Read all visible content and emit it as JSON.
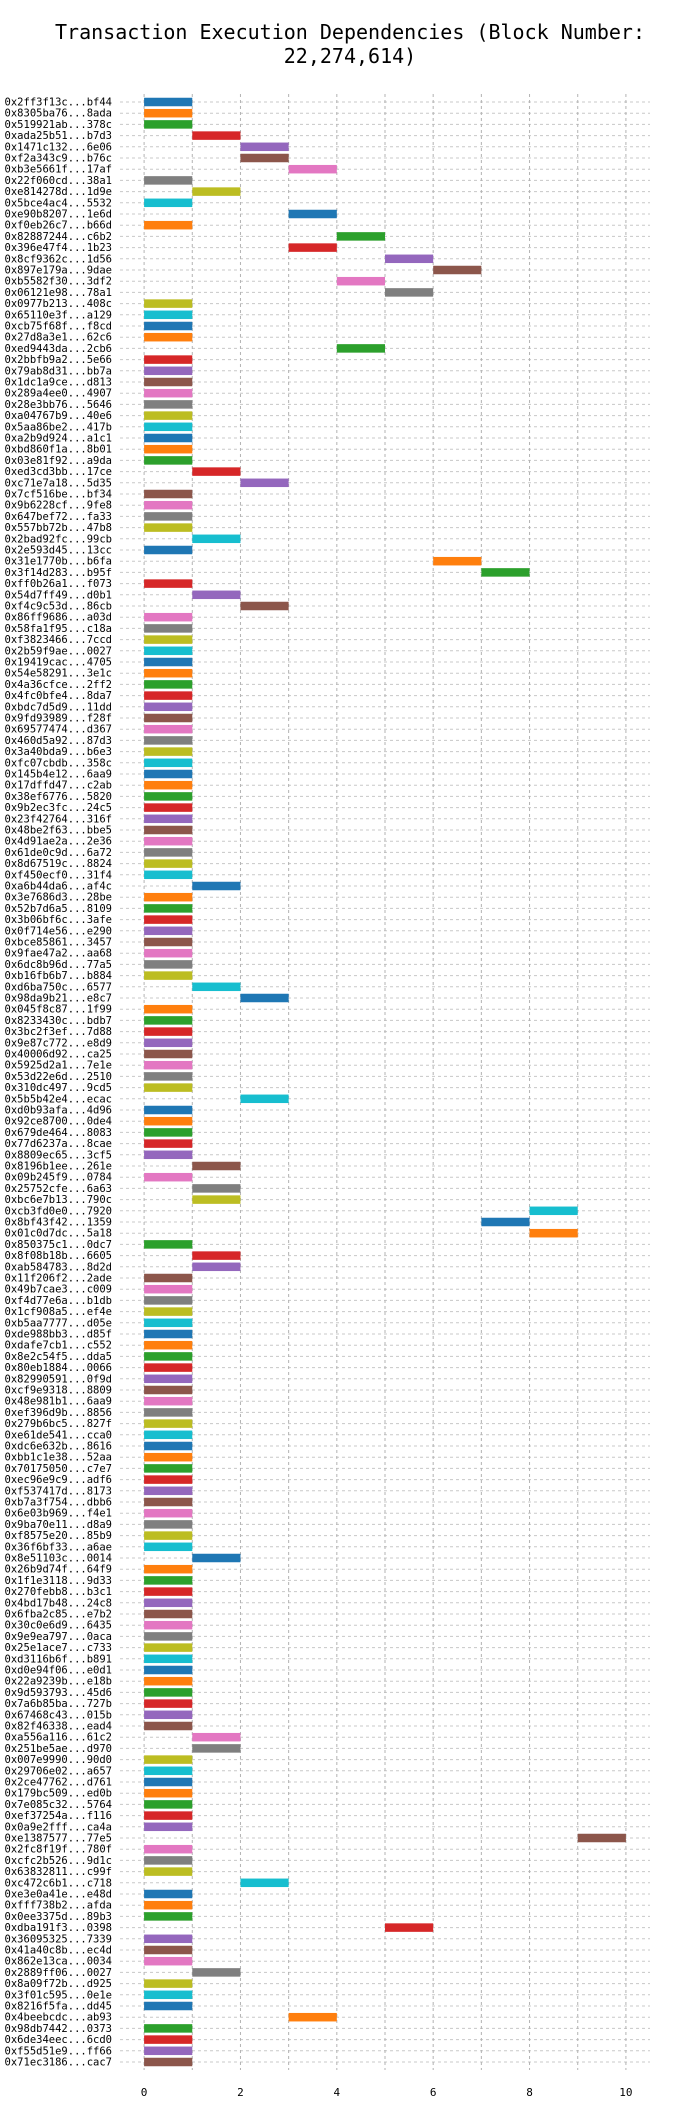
{
  "chart_data": {
    "type": "bar",
    "orientation": "horizontal",
    "title": "Transaction Execution Dependencies (Block Number: 22,274,614)",
    "xlabel": "",
    "ylabel": "",
    "xlim": [
      -0.5,
      10.5
    ],
    "xticks": [
      0,
      2,
      4,
      6,
      8,
      10
    ],
    "grid": {
      "x": true,
      "y": true,
      "x_step": 1
    },
    "palette": [
      "#1f77b4",
      "#ff7f0e",
      "#2ca02c",
      "#d62728",
      "#9467bd",
      "#8c564b",
      "#e377c2",
      "#7f7f7f",
      "#bcbd22",
      "#17becf"
    ],
    "transactions": [
      {
        "label": "0x2ff3f13c...bf44",
        "start": 0,
        "end": 1
      },
      {
        "label": "0x8305ba76...8ada",
        "start": 0,
        "end": 1
      },
      {
        "label": "0x519921ab...378c",
        "start": 0,
        "end": 1
      },
      {
        "label": "0xada25b51...b7d3",
        "start": 1,
        "end": 2
      },
      {
        "label": "0x1471c132...6e06",
        "start": 2,
        "end": 3
      },
      {
        "label": "0xf2a343c9...b76c",
        "start": 2,
        "end": 3
      },
      {
        "label": "0xb3e5661f...17af",
        "start": 3,
        "end": 4
      },
      {
        "label": "0x22f060cd...38a1",
        "start": 0,
        "end": 1
      },
      {
        "label": "0xe814278d...1d9e",
        "start": 1,
        "end": 2
      },
      {
        "label": "0x5bce4ac4...5532",
        "start": 0,
        "end": 1
      },
      {
        "label": "0xe90b8207...1e6d",
        "start": 3,
        "end": 4
      },
      {
        "label": "0xf0eb26c7...b66d",
        "start": 0,
        "end": 1
      },
      {
        "label": "0x82887244...c6b2",
        "start": 4,
        "end": 5
      },
      {
        "label": "0x396e47f4...1b23",
        "start": 3,
        "end": 4
      },
      {
        "label": "0x8cf9362c...1d56",
        "start": 5,
        "end": 6
      },
      {
        "label": "0x897e179a...9dae",
        "start": 6,
        "end": 7
      },
      {
        "label": "0xb5582f30...3df2",
        "start": 4,
        "end": 5
      },
      {
        "label": "0x06121e98...78a1",
        "start": 5,
        "end": 6
      },
      {
        "label": "0x0977b213...408c",
        "start": 0,
        "end": 1
      },
      {
        "label": "0x65110e3f...a129",
        "start": 0,
        "end": 1
      },
      {
        "label": "0xcb75f68f...f8cd",
        "start": 0,
        "end": 1
      },
      {
        "label": "0x27d8a3e1...62c6",
        "start": 0,
        "end": 1
      },
      {
        "label": "0xed9443da...2cb6",
        "start": 4,
        "end": 5
      },
      {
        "label": "0x2bbfb9a2...5e66",
        "start": 0,
        "end": 1
      },
      {
        "label": "0x79ab8d31...bb7a",
        "start": 0,
        "end": 1
      },
      {
        "label": "0x1dc1a9ce...d813",
        "start": 0,
        "end": 1
      },
      {
        "label": "0x289a4ee0...4907",
        "start": 0,
        "end": 1
      },
      {
        "label": "0x28e3bb76...5646",
        "start": 0,
        "end": 1
      },
      {
        "label": "0xa04767b9...40e6",
        "start": 0,
        "end": 1
      },
      {
        "label": "0x5aa86be2...417b",
        "start": 0,
        "end": 1
      },
      {
        "label": "0xa2b9d924...a1c1",
        "start": 0,
        "end": 1
      },
      {
        "label": "0xbd860f1a...8b01",
        "start": 0,
        "end": 1
      },
      {
        "label": "0x03e81f92...a9da",
        "start": 0,
        "end": 1
      },
      {
        "label": "0xed3cd3bb...17ce",
        "start": 1,
        "end": 2
      },
      {
        "label": "0xc71e7a18...5d35",
        "start": 2,
        "end": 3
      },
      {
        "label": "0x7cf516be...bf34",
        "start": 0,
        "end": 1
      },
      {
        "label": "0x9b6228cf...9fe8",
        "start": 0,
        "end": 1
      },
      {
        "label": "0x647bef72...fa33",
        "start": 0,
        "end": 1
      },
      {
        "label": "0x557bb72b...47b8",
        "start": 0,
        "end": 1
      },
      {
        "label": "0x2bad92fc...99cb",
        "start": 1,
        "end": 2
      },
      {
        "label": "0x2e593d45...13cc",
        "start": 0,
        "end": 1
      },
      {
        "label": "0x31e1770b...b6fa",
        "start": 6,
        "end": 7
      },
      {
        "label": "0x3f14d283...b95f",
        "start": 7,
        "end": 8
      },
      {
        "label": "0xff0b26a1...f073",
        "start": 0,
        "end": 1
      },
      {
        "label": "0x54d7ff49...d0b1",
        "start": 1,
        "end": 2
      },
      {
        "label": "0xf4c9c53d...86cb",
        "start": 2,
        "end": 3
      },
      {
        "label": "0x86ff9686...a03d",
        "start": 0,
        "end": 1
      },
      {
        "label": "0x58fa1f95...c18a",
        "start": 0,
        "end": 1
      },
      {
        "label": "0xf3823466...7ccd",
        "start": 0,
        "end": 1
      },
      {
        "label": "0x2b59f9ae...0027",
        "start": 0,
        "end": 1
      },
      {
        "label": "0x19419cac...4705",
        "start": 0,
        "end": 1
      },
      {
        "label": "0x54e58291...3e1c",
        "start": 0,
        "end": 1
      },
      {
        "label": "0x4a36cfce...2ff2",
        "start": 0,
        "end": 1
      },
      {
        "label": "0x4fc0bfe4...8da7",
        "start": 0,
        "end": 1
      },
      {
        "label": "0xbdc7d5d9...11dd",
        "start": 0,
        "end": 1
      },
      {
        "label": "0x9fd93989...f28f",
        "start": 0,
        "end": 1
      },
      {
        "label": "0x69577474...d367",
        "start": 0,
        "end": 1
      },
      {
        "label": "0x460d5a92...87d3",
        "start": 0,
        "end": 1
      },
      {
        "label": "0x3a40bda9...b6e3",
        "start": 0,
        "end": 1
      },
      {
        "label": "0xfc07cbdb...358c",
        "start": 0,
        "end": 1
      },
      {
        "label": "0x145b4e12...6aa9",
        "start": 0,
        "end": 1
      },
      {
        "label": "0x17dffd47...c2ab",
        "start": 0,
        "end": 1
      },
      {
        "label": "0x38ef6776...5820",
        "start": 0,
        "end": 1
      },
      {
        "label": "0x9b2ec3fc...24c5",
        "start": 0,
        "end": 1
      },
      {
        "label": "0x23f42764...316f",
        "start": 0,
        "end": 1
      },
      {
        "label": "0x48be2f63...bbe5",
        "start": 0,
        "end": 1
      },
      {
        "label": "0x4d91ae2a...2e36",
        "start": 0,
        "end": 1
      },
      {
        "label": "0x61de0c9d...6a72",
        "start": 0,
        "end": 1
      },
      {
        "label": "0x8d67519c...8824",
        "start": 0,
        "end": 1
      },
      {
        "label": "0xf450ecf0...31f4",
        "start": 0,
        "end": 1
      },
      {
        "label": "0xa6b44da6...af4c",
        "start": 1,
        "end": 2
      },
      {
        "label": "0x3e7686d3...28be",
        "start": 0,
        "end": 1
      },
      {
        "label": "0x52b7d6a5...8109",
        "start": 0,
        "end": 1
      },
      {
        "label": "0x3b06bf6c...3afe",
        "start": 0,
        "end": 1
      },
      {
        "label": "0x0f714e56...e290",
        "start": 0,
        "end": 1
      },
      {
        "label": "0xbce85861...3457",
        "start": 0,
        "end": 1
      },
      {
        "label": "0x9fae47a2...aa68",
        "start": 0,
        "end": 1
      },
      {
        "label": "0x6dc8b96d...77a5",
        "start": 0,
        "end": 1
      },
      {
        "label": "0xb16fb6b7...b884",
        "start": 0,
        "end": 1
      },
      {
        "label": "0xd6ba750c...6577",
        "start": 1,
        "end": 2
      },
      {
        "label": "0x98da9b21...e8c7",
        "start": 2,
        "end": 3
      },
      {
        "label": "0x045f8c87...1f99",
        "start": 0,
        "end": 1
      },
      {
        "label": "0x8233430c...bdb7",
        "start": 0,
        "end": 1
      },
      {
        "label": "0x3bc2f3ef...7d88",
        "start": 0,
        "end": 1
      },
      {
        "label": "0x9e87c772...e8d9",
        "start": 0,
        "end": 1
      },
      {
        "label": "0x40006d92...ca25",
        "start": 0,
        "end": 1
      },
      {
        "label": "0x5925d2a1...7e1e",
        "start": 0,
        "end": 1
      },
      {
        "label": "0x53d22e6d...2510",
        "start": 0,
        "end": 1
      },
      {
        "label": "0x310dc497...9cd5",
        "start": 0,
        "end": 1
      },
      {
        "label": "0x5b5b42e4...ecac",
        "start": 2,
        "end": 3
      },
      {
        "label": "0xd0b93afa...4d96",
        "start": 0,
        "end": 1
      },
      {
        "label": "0x92ce8700...0de4",
        "start": 0,
        "end": 1
      },
      {
        "label": "0x679de464...8083",
        "start": 0,
        "end": 1
      },
      {
        "label": "0x77d6237a...8cae",
        "start": 0,
        "end": 1
      },
      {
        "label": "0x8809ec65...3cf5",
        "start": 0,
        "end": 1
      },
      {
        "label": "0x8196b1ee...261e",
        "start": 1,
        "end": 2
      },
      {
        "label": "0x09b245f9...0784",
        "start": 0,
        "end": 1
      },
      {
        "label": "0x25752cfe...6a63",
        "start": 1,
        "end": 2
      },
      {
        "label": "0xbc6e7b13...790c",
        "start": 1,
        "end": 2
      },
      {
        "label": "0xcb3fd0e0...7920",
        "start": 8,
        "end": 9
      },
      {
        "label": "0x8bf43f42...1359",
        "start": 7,
        "end": 8
      },
      {
        "label": "0x01c0d7dc...5a18",
        "start": 8,
        "end": 9
      },
      {
        "label": "0x850375c1...0dc7",
        "start": 0,
        "end": 1
      },
      {
        "label": "0x8f08b18b...6605",
        "start": 1,
        "end": 2
      },
      {
        "label": "0xab584783...8d2d",
        "start": 1,
        "end": 2
      },
      {
        "label": "0x11f206f2...2ade",
        "start": 0,
        "end": 1
      },
      {
        "label": "0x49b7cae3...c009",
        "start": 0,
        "end": 1
      },
      {
        "label": "0xf4d77e6a...b1db",
        "start": 0,
        "end": 1
      },
      {
        "label": "0x1cf908a5...ef4e",
        "start": 0,
        "end": 1
      },
      {
        "label": "0xb5aa7777...d05e",
        "start": 0,
        "end": 1
      },
      {
        "label": "0xde988bb3...d85f",
        "start": 0,
        "end": 1
      },
      {
        "label": "0xdafe7cb1...c552",
        "start": 0,
        "end": 1
      },
      {
        "label": "0x8e2c54f5...dda5",
        "start": 0,
        "end": 1
      },
      {
        "label": "0x80eb1884...0066",
        "start": 0,
        "end": 1
      },
      {
        "label": "0x82990591...0f9d",
        "start": 0,
        "end": 1
      },
      {
        "label": "0xcf9e9318...8809",
        "start": 0,
        "end": 1
      },
      {
        "label": "0x48e981b1...6aa9",
        "start": 0,
        "end": 1
      },
      {
        "label": "0xef396d9b...8856",
        "start": 0,
        "end": 1
      },
      {
        "label": "0x279b6bc5...827f",
        "start": 0,
        "end": 1
      },
      {
        "label": "0xe61de541...cca0",
        "start": 0,
        "end": 1
      },
      {
        "label": "0xdc6e632b...8616",
        "start": 0,
        "end": 1
      },
      {
        "label": "0xbb1c1e38...52aa",
        "start": 0,
        "end": 1
      },
      {
        "label": "0x70175050...c7e7",
        "start": 0,
        "end": 1
      },
      {
        "label": "0xec96e9c9...adf6",
        "start": 0,
        "end": 1
      },
      {
        "label": "0xf537417d...8173",
        "start": 0,
        "end": 1
      },
      {
        "label": "0xb7a3f754...dbb6",
        "start": 0,
        "end": 1
      },
      {
        "label": "0x6e03b969...f4e1",
        "start": 0,
        "end": 1
      },
      {
        "label": "0x9ba70e11...d8a9",
        "start": 0,
        "end": 1
      },
      {
        "label": "0xf8575e20...85b9",
        "start": 0,
        "end": 1
      },
      {
        "label": "0x36f6bf33...a6ae",
        "start": 0,
        "end": 1
      },
      {
        "label": "0x8e51103c...0014",
        "start": 1,
        "end": 2
      },
      {
        "label": "0x26b9d74f...64f9",
        "start": 0,
        "end": 1
      },
      {
        "label": "0x1f1e3118...9d33",
        "start": 0,
        "end": 1
      },
      {
        "label": "0x270febb8...b3c1",
        "start": 0,
        "end": 1
      },
      {
        "label": "0x4bd17b48...24c8",
        "start": 0,
        "end": 1
      },
      {
        "label": "0x6fba2c85...e7b2",
        "start": 0,
        "end": 1
      },
      {
        "label": "0x30c0e6d9...6435",
        "start": 0,
        "end": 1
      },
      {
        "label": "0x9e9ea797...0aca",
        "start": 0,
        "end": 1
      },
      {
        "label": "0x25e1ace7...c733",
        "start": 0,
        "end": 1
      },
      {
        "label": "0xd3116b6f...b891",
        "start": 0,
        "end": 1
      },
      {
        "label": "0xd0e94f06...e0d1",
        "start": 0,
        "end": 1
      },
      {
        "label": "0x22a9239b...e18b",
        "start": 0,
        "end": 1
      },
      {
        "label": "0x9d593793...45d6",
        "start": 0,
        "end": 1
      },
      {
        "label": "0x7a6b85ba...727b",
        "start": 0,
        "end": 1
      },
      {
        "label": "0x67468c43...015b",
        "start": 0,
        "end": 1
      },
      {
        "label": "0x82f46338...ead4",
        "start": 0,
        "end": 1
      },
      {
        "label": "0xa556a116...61c2",
        "start": 1,
        "end": 2
      },
      {
        "label": "0x251be5ae...d970",
        "start": 1,
        "end": 2
      },
      {
        "label": "0x007e9990...90d0",
        "start": 0,
        "end": 1
      },
      {
        "label": "0x29706e02...a657",
        "start": 0,
        "end": 1
      },
      {
        "label": "0x2ce47762...d761",
        "start": 0,
        "end": 1
      },
      {
        "label": "0x179bc509...ed0b",
        "start": 0,
        "end": 1
      },
      {
        "label": "0x7e085c32...5764",
        "start": 0,
        "end": 1
      },
      {
        "label": "0xef37254a...f116",
        "start": 0,
        "end": 1
      },
      {
        "label": "0x0a9e2fff...ca4a",
        "start": 0,
        "end": 1
      },
      {
        "label": "0xe1387577...77e5",
        "start": 9,
        "end": 10
      },
      {
        "label": "0x2fc8f19f...780f",
        "start": 0,
        "end": 1
      },
      {
        "label": "0xcfc2b526...9d1c",
        "start": 0,
        "end": 1
      },
      {
        "label": "0x63832811...c99f",
        "start": 0,
        "end": 1
      },
      {
        "label": "0xc472c6b1...c718",
        "start": 2,
        "end": 3
      },
      {
        "label": "0xe3e0a41e...e48d",
        "start": 0,
        "end": 1
      },
      {
        "label": "0xfff738b2...afda",
        "start": 0,
        "end": 1
      },
      {
        "label": "0x0ee3375d...89b3",
        "start": 0,
        "end": 1
      },
      {
        "label": "0xdba191f3...0398",
        "start": 5,
        "end": 6
      },
      {
        "label": "0x36095325...7339",
        "start": 0,
        "end": 1
      },
      {
        "label": "0x41a40c8b...ec4d",
        "start": 0,
        "end": 1
      },
      {
        "label": "0x862e13ca...0034",
        "start": 0,
        "end": 1
      },
      {
        "label": "0x2889ff06...0027",
        "start": 1,
        "end": 2
      },
      {
        "label": "0x8a09f72b...d925",
        "start": 0,
        "end": 1
      },
      {
        "label": "0x3f01c595...0e1e",
        "start": 0,
        "end": 1
      },
      {
        "label": "0x8216f5fa...dd45",
        "start": 0,
        "end": 1
      },
      {
        "label": "0x4beebcdc...ab93",
        "start": 3,
        "end": 4
      },
      {
        "label": "0x98db7442...0373",
        "start": 0,
        "end": 1
      },
      {
        "label": "0x6de34eec...6cd0",
        "start": 0,
        "end": 1
      },
      {
        "label": "0xf55d51e9...ff66",
        "start": 0,
        "end": 1
      },
      {
        "label": "0x71ec3186...cac7",
        "start": 0,
        "end": 1
      }
    ]
  }
}
